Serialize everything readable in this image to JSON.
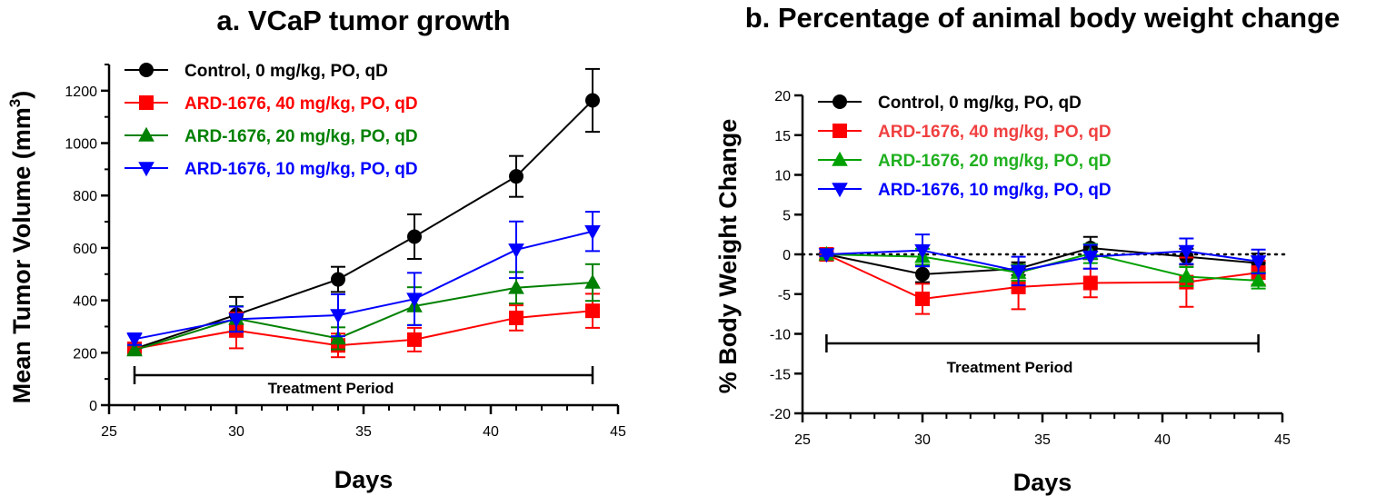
{
  "chart_data": [
    {
      "type": "line",
      "title": "a. VCaP tumor growth",
      "xlabel": "Days",
      "ylabel": "Mean Tumor Volume (mm",
      "ylabel_sup": "3",
      "ylabel_end": ")",
      "xlim": [
        25,
        45
      ],
      "ylim": [
        0,
        1300
      ],
      "xticks": [
        25,
        30,
        35,
        40,
        45
      ],
      "yticks": [
        0,
        200,
        400,
        600,
        800,
        1000,
        1200
      ],
      "grid": false,
      "legend_position": "top-left",
      "treatment_period": {
        "label": "Treatment Period",
        "start": 26,
        "end": 44
      },
      "x": [
        26,
        30,
        34,
        37,
        41,
        44
      ],
      "series": [
        {
          "name": "Control, 0 mg/kg, PO, qD",
          "color": "#000000",
          "marker": "circle",
          "values": [
            215,
            345,
            480,
            643,
            873,
            1163
          ],
          "errors": [
            20,
            68,
            48,
            85,
            78,
            120
          ]
        },
        {
          "name": "ARD-1676, 40 mg/kg, PO, qD",
          "color": "#ff0000",
          "marker": "square",
          "values": [
            215,
            285,
            228,
            250,
            333,
            360
          ],
          "errors": [
            18,
            68,
            45,
            45,
            48,
            65
          ]
        },
        {
          "name": "ARD-1676, 20 mg/kg, PO, qD",
          "color": "#008000",
          "marker": "triangle-up",
          "values": [
            210,
            330,
            255,
            378,
            448,
            468
          ],
          "errors": [
            18,
            48,
            42,
            72,
            60,
            70
          ]
        },
        {
          "name": "ARD-1676, 10 mg/kg, PO, qD",
          "color": "#0000ff",
          "marker": "triangle-down",
          "values": [
            252,
            328,
            343,
            405,
            593,
            663
          ],
          "errors": [
            22,
            48,
            80,
            100,
            108,
            75
          ]
        }
      ]
    },
    {
      "type": "line",
      "title": "b. Percentage of animal body weight change",
      "xlabel": "Days",
      "ylabel": "% Body Weight Change",
      "xlim": [
        25,
        45
      ],
      "ylim": [
        -20,
        20
      ],
      "xticks": [
        25,
        30,
        35,
        40,
        45
      ],
      "yticks": [
        -20,
        -15,
        -10,
        -5,
        0,
        5,
        10,
        15,
        20
      ],
      "grid": false,
      "legend_position": "top-left",
      "zero_line": "dotted",
      "treatment_period": {
        "label": "Treatment Period",
        "start": 26,
        "end": 44
      },
      "x": [
        26,
        30,
        34,
        37,
        41,
        44
      ],
      "series": [
        {
          "name": "Control, 0 mg/kg, PO, qD",
          "color": "#000000",
          "marker": "circle",
          "values": [
            0,
            -2.5,
            -1.8,
            0.8,
            -0.3,
            -1.1
          ],
          "errors": [
            0.2,
            1.0,
            0.8,
            1.4,
            1.0,
            1.2
          ]
        },
        {
          "name": "ARD-1676, 40 mg/kg, PO, qD",
          "color": "#ff0000",
          "marker": "square",
          "values": [
            0,
            -5.6,
            -4.1,
            -3.6,
            -3.5,
            -2.3
          ],
          "errors": [
            0.2,
            1.9,
            2.8,
            1.8,
            3.1,
            1.5
          ]
        },
        {
          "name": "ARD-1676, 20 mg/kg, PO, qD",
          "color": "#00a000",
          "marker": "triangle-up",
          "values": [
            0,
            -0.3,
            -2.3,
            0.1,
            -2.8,
            -3.3
          ],
          "errors": [
            0.2,
            1.0,
            1.0,
            1.2,
            1.2,
            1.0
          ]
        },
        {
          "name": "ARD-1676, 10 mg/kg, PO, qD",
          "color": "#0000ff",
          "marker": "triangle-down",
          "values": [
            0,
            0.5,
            -2.1,
            -0.3,
            0.4,
            -0.9
          ],
          "errors": [
            0.2,
            2.0,
            1.8,
            1.5,
            1.6,
            1.5
          ]
        }
      ]
    }
  ],
  "panel_b_legend_colors": [
    "#000000",
    "#f04040",
    "#20b020",
    "#0000ff"
  ]
}
